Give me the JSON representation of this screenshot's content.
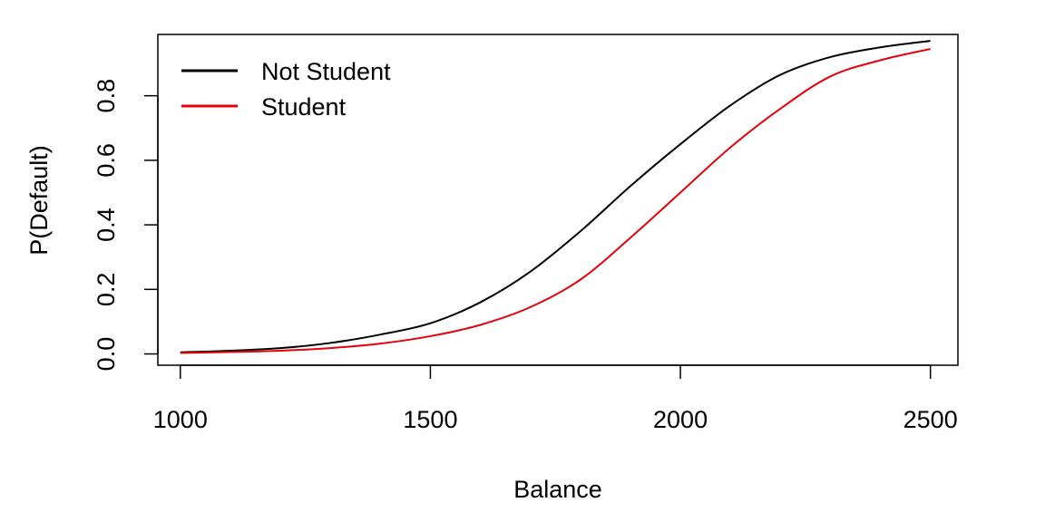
{
  "chart_data": {
    "type": "line",
    "title": "",
    "xlabel": "Balance",
    "ylabel": "P(Default)",
    "xlim": [
      955,
      2555
    ],
    "ylim": [
      -0.035,
      0.99
    ],
    "xticks": [
      1000,
      1500,
      2000,
      2500
    ],
    "xtick_labels": [
      "1000",
      "1500",
      "2000",
      "2500"
    ],
    "yticks": [
      0.0,
      0.2,
      0.4,
      0.6,
      0.8
    ],
    "ytick_labels": [
      "0.0",
      "0.2",
      "0.4",
      "0.6",
      "0.8"
    ],
    "grid": false,
    "legend_position": "top-left",
    "x": [
      1000,
      1100,
      1200,
      1300,
      1400,
      1500,
      1600,
      1700,
      1800,
      1900,
      2000,
      2100,
      2200,
      2300,
      2400,
      2500
    ],
    "series": [
      {
        "name": "Not Student",
        "color": "#000000",
        "values": [
          0.005,
          0.01,
          0.018,
          0.034,
          0.06,
          0.095,
          0.16,
          0.255,
          0.38,
          0.52,
          0.65,
          0.77,
          0.865,
          0.92,
          0.95,
          0.97
        ]
      },
      {
        "name": "Student",
        "color": "#e8000b",
        "values": [
          0.003,
          0.006,
          0.01,
          0.018,
          0.032,
          0.055,
          0.09,
          0.145,
          0.23,
          0.36,
          0.5,
          0.64,
          0.76,
          0.86,
          0.91,
          0.945
        ]
      }
    ]
  }
}
